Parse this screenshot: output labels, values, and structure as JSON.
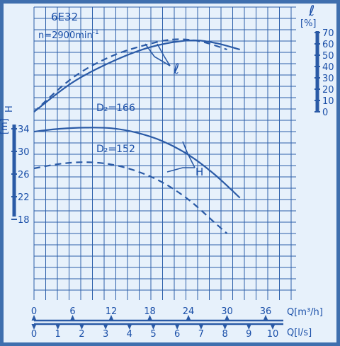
{
  "chart_data": {
    "type": "line",
    "pump_model": "6E32",
    "speed_text": "n=2900min",
    "speed_exp": "-1",
    "axes": {
      "q_m3h": {
        "label": "Q[m³/h]",
        "ticks": [
          "0",
          "6",
          "12",
          "18",
          "24",
          "30",
          "36"
        ],
        "range": [
          0,
          36
        ]
      },
      "q_ls": {
        "label": "Q[l/s]",
        "ticks": [
          "0",
          "1",
          "2",
          "3",
          "4",
          "5",
          "6",
          "7",
          "8",
          "9",
          "10"
        ],
        "range": [
          0,
          10
        ]
      },
      "efficiency": {
        "label_symbol": "ℓ",
        "unit": "[%]",
        "ticks": [
          "0",
          "10",
          "20",
          "30",
          "40",
          "50",
          "60",
          "70"
        ],
        "range": [
          0,
          70
        ]
      },
      "head": {
        "label": "H",
        "unit": "[m]",
        "ticks": [
          "18",
          "22",
          "26",
          "30",
          "34"
        ],
        "range": [
          18,
          34
        ]
      }
    },
    "grid": true,
    "curve_labels": {
      "efficiency": "ℓ",
      "head": "H",
      "d166": "D₂=166",
      "d152": "D₂=152"
    },
    "series": [
      {
        "name": "ℓ",
        "impeller": "D₂=166",
        "unit": "%",
        "style": "solid",
        "x": [
          0,
          6,
          12,
          18,
          24,
          28,
          32
        ],
        "y": [
          0,
          26,
          44,
          57,
          63,
          61,
          55
        ]
      },
      {
        "name": "ℓ",
        "impeller": "D₂=152",
        "unit": "%",
        "style": "dashed",
        "x": [
          0,
          6,
          12,
          18,
          22,
          26,
          30
        ],
        "y": [
          0,
          30,
          49,
          60,
          64,
          62,
          55
        ]
      },
      {
        "name": "H",
        "impeller": "D₂=166",
        "unit": "m",
        "style": "solid",
        "x": [
          0,
          4,
          8,
          12,
          16,
          20,
          24,
          28,
          32
        ],
        "y": [
          33.5,
          34.0,
          34.2,
          34.1,
          33.3,
          31.8,
          29.4,
          26.0,
          21.8
        ]
      },
      {
        "name": "H",
        "impeller": "D₂=152",
        "unit": "m",
        "style": "dashed",
        "x": [
          0,
          4,
          8,
          12,
          16,
          20,
          24,
          28,
          30
        ],
        "y": [
          27.0,
          27.8,
          28.1,
          27.7,
          26.5,
          24.5,
          21.5,
          17.5,
          15.5
        ]
      }
    ]
  }
}
